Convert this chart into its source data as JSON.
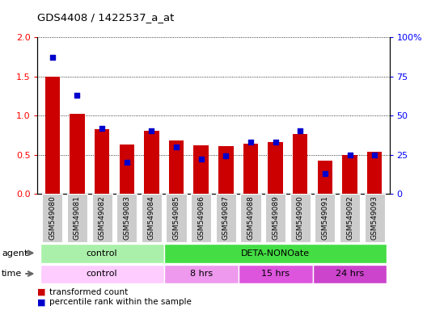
{
  "title": "GDS4408 / 1422537_a_at",
  "samples": [
    "GSM549080",
    "GSM549081",
    "GSM549082",
    "GSM549083",
    "GSM549084",
    "GSM549085",
    "GSM549086",
    "GSM549087",
    "GSM549088",
    "GSM549089",
    "GSM549090",
    "GSM549091",
    "GSM549092",
    "GSM549093"
  ],
  "transformed_count": [
    1.5,
    1.02,
    0.83,
    0.63,
    0.8,
    0.68,
    0.62,
    0.61,
    0.64,
    0.66,
    0.76,
    0.42,
    0.5,
    0.54
  ],
  "percentile_rank": [
    87,
    63,
    42,
    20,
    40,
    30,
    22,
    24,
    33,
    33,
    40,
    13,
    25,
    25
  ],
  "ylim_left": [
    0,
    2
  ],
  "ylim_right": [
    0,
    100
  ],
  "yticks_left": [
    0,
    0.5,
    1.0,
    1.5,
    2.0
  ],
  "yticks_right": [
    0,
    25,
    50,
    75,
    100
  ],
  "bar_color": "#cc0000",
  "dot_color": "#0000cc",
  "background_color": "#ffffff",
  "agent_groups": [
    {
      "label": "control",
      "start": 0,
      "end": 4,
      "color": "#aaf0aa"
    },
    {
      "label": "DETA-NONOate",
      "start": 5,
      "end": 13,
      "color": "#44dd44"
    }
  ],
  "time_groups": [
    {
      "label": "control",
      "start": 0,
      "end": 4,
      "color": "#ffccff"
    },
    {
      "label": "8 hrs",
      "start": 5,
      "end": 7,
      "color": "#ee99ee"
    },
    {
      "label": "15 hrs",
      "start": 8,
      "end": 10,
      "color": "#dd55dd"
    },
    {
      "label": "24 hrs",
      "start": 11,
      "end": 13,
      "color": "#cc44cc"
    }
  ],
  "tick_bg_color": "#cccccc",
  "legend_red_label": "transformed count",
  "legend_blue_label": "percentile rank within the sample"
}
